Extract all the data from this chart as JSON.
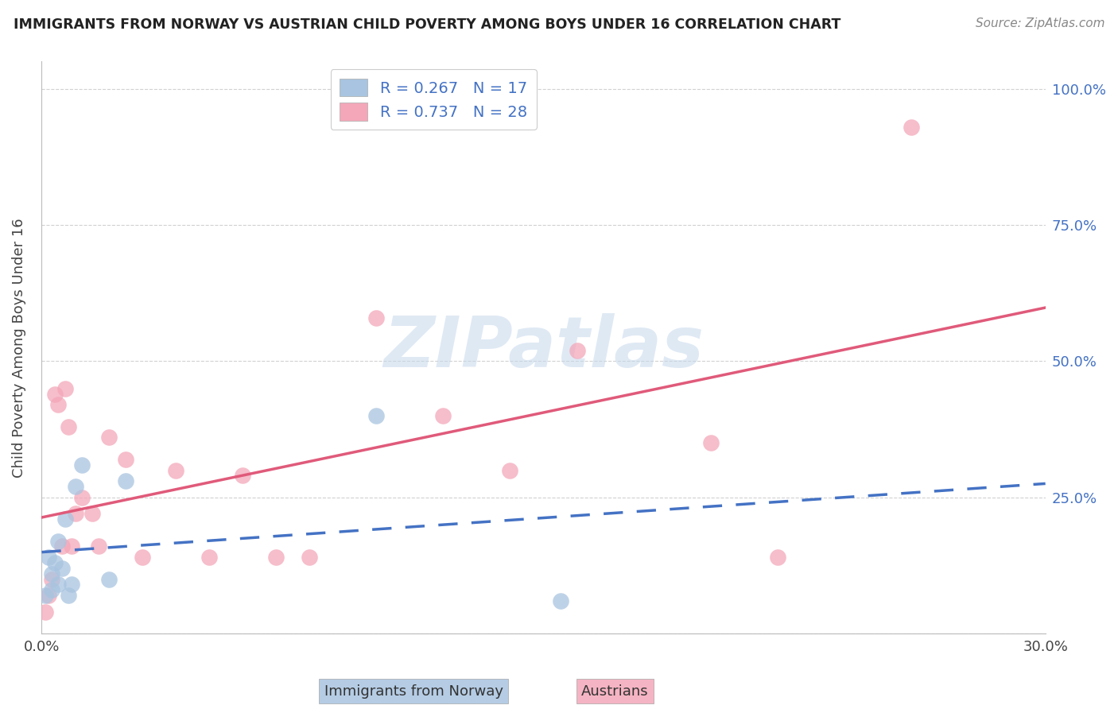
{
  "title": "IMMIGRANTS FROM NORWAY VS AUSTRIAN CHILD POVERTY AMONG BOYS UNDER 16 CORRELATION CHART",
  "source": "Source: ZipAtlas.com",
  "ylabel": "Child Poverty Among Boys Under 16",
  "xlim": [
    0.0,
    0.3
  ],
  "ylim": [
    0.0,
    1.05
  ],
  "norway_R": 0.267,
  "norway_N": 17,
  "austrians_R": 0.737,
  "austrians_N": 28,
  "norway_color": "#a8c4e0",
  "norway_trendline_color": "#4472c4",
  "austrians_color": "#f4a7b9",
  "austrians_trendline_color": "#e05a7a",
  "watermark": "ZIPatlas",
  "legend_label_norway": "Immigrants from Norway",
  "legend_label_austrians": "Austrians",
  "norway_x": [
    0.001,
    0.002,
    0.003,
    0.003,
    0.004,
    0.005,
    0.005,
    0.006,
    0.007,
    0.008,
    0.009,
    0.01,
    0.012,
    0.02,
    0.025,
    0.1,
    0.155
  ],
  "norway_y": [
    0.07,
    0.14,
    0.08,
    0.11,
    0.13,
    0.09,
    0.17,
    0.12,
    0.21,
    0.07,
    0.09,
    0.27,
    0.31,
    0.1,
    0.28,
    0.4,
    0.06
  ],
  "austrians_x": [
    0.001,
    0.002,
    0.003,
    0.004,
    0.005,
    0.006,
    0.007,
    0.008,
    0.009,
    0.01,
    0.012,
    0.015,
    0.017,
    0.02,
    0.025,
    0.03,
    0.04,
    0.05,
    0.06,
    0.07,
    0.08,
    0.1,
    0.12,
    0.14,
    0.16,
    0.2,
    0.22,
    0.26
  ],
  "austrians_y": [
    0.04,
    0.07,
    0.1,
    0.44,
    0.42,
    0.16,
    0.45,
    0.38,
    0.16,
    0.22,
    0.25,
    0.22,
    0.16,
    0.36,
    0.32,
    0.14,
    0.3,
    0.14,
    0.29,
    0.14,
    0.14,
    0.58,
    0.4,
    0.3,
    0.52,
    0.35,
    0.14,
    0.93
  ],
  "background_color": "#ffffff",
  "grid_color": "#cccccc",
  "ytick_positions": [
    0.0,
    0.25,
    0.5,
    0.75,
    1.0
  ],
  "ytick_labels": [
    "",
    "25.0%",
    "50.0%",
    "75.0%",
    "100.0%"
  ],
  "xtick_positions": [
    0.0,
    0.05,
    0.1,
    0.15,
    0.2,
    0.25,
    0.3
  ],
  "xtick_labels": [
    "0.0%",
    "",
    "",
    "",
    "",
    "",
    "30.0%"
  ]
}
